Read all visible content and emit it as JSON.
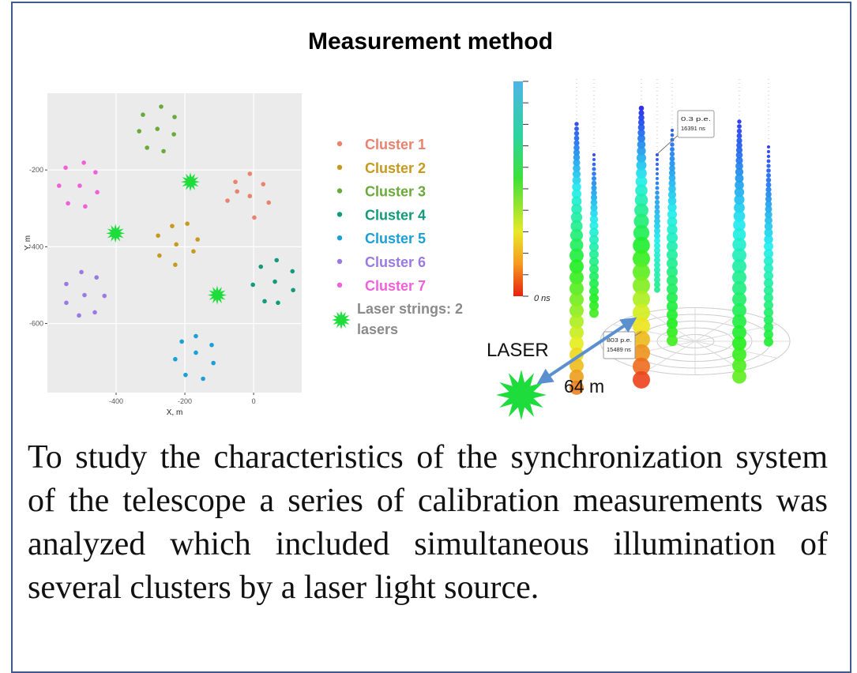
{
  "title": "Measurement method",
  "chart_data": {
    "type": "scatter",
    "xlabel": "X, m",
    "ylabel": "Y, m",
    "xlim": [
      -600,
      140
    ],
    "ylim": [
      -780,
      0
    ],
    "xticks": [
      -400,
      -200,
      0
    ],
    "yticks": [
      -200,
      -400,
      -600
    ],
    "grid": true,
    "series": [
      {
        "name": "Cluster 1",
        "color": "#e8836f",
        "marker": "circle",
        "x": [
          -11,
          -53,
          28,
          -48,
          -11,
          -76,
          44,
          2
        ],
        "values": [
          -210,
          -231,
          -237,
          -256,
          -268,
          -280,
          -285,
          -324
        ]
      },
      {
        "name": "Cluster 2",
        "color": "#c59a1e",
        "marker": "circle",
        "x": [
          -193,
          -237,
          -278,
          -163,
          -225,
          -175,
          -274,
          -228
        ],
        "values": [
          -340,
          -346,
          -371,
          -381,
          -394,
          -412,
          -423,
          -447
        ]
      },
      {
        "name": "Cluster 3",
        "color": "#6aaa3a",
        "marker": "circle",
        "x": [
          -269,
          -322,
          -230,
          -280,
          -333,
          -232,
          -310,
          -262
        ],
        "values": [
          -35,
          -56,
          -62,
          -93,
          -99,
          -107,
          -142,
          -151
        ]
      },
      {
        "name": "Cluster 4",
        "color": "#139a7a",
        "marker": "circle",
        "x": [
          67,
          21,
          113,
          62,
          -2,
          115,
          32,
          71
        ],
        "values": [
          -435,
          -452,
          -464,
          -491,
          -499,
          -513,
          -542,
          -546
        ]
      },
      {
        "name": "Cluster 5",
        "color": "#1a9fd6",
        "marker": "circle",
        "x": [
          -168,
          -209,
          -122,
          -168,
          -228,
          -117,
          -198,
          -147
        ],
        "values": [
          -633,
          -647,
          -656,
          -676,
          -693,
          -703,
          -734,
          -744
        ]
      },
      {
        "name": "Cluster 6",
        "color": "#9a7ae0",
        "marker": "circle",
        "x": [
          -501,
          -545,
          -457,
          -492,
          -545,
          -434,
          -508,
          -462
        ],
        "values": [
          -466,
          -497,
          -480,
          -526,
          -546,
          -528,
          -579,
          -571
        ]
      },
      {
        "name": "Cluster 7",
        "color": "#f060d8",
        "marker": "circle",
        "x": [
          -494,
          -547,
          -460,
          -506,
          -566,
          -455,
          -540,
          -490
        ],
        "values": [
          -181,
          -194,
          -206,
          -241,
          -241,
          -258,
          -287,
          -295
        ]
      },
      {
        "name": "Laser strings: 2 lasers",
        "color": "#1edc3c",
        "marker": "star",
        "x": [
          -184,
          -402,
          -106
        ],
        "values": [
          -231,
          -365,
          -526
        ]
      }
    ]
  },
  "event_display": {
    "color_bar_label": "0 ns",
    "annotations": [
      {
        "charge": "0.3 p.e.",
        "time": "16391 ns"
      },
      {
        "charge": "803 p.e.",
        "time": "15489 ns"
      }
    ],
    "laser_label": "LASER",
    "distance_label": "64 m"
  },
  "paragraph": "To study the characteristics of the synchronization system of the telescope a series of calibration measurements was analyzed which included simultaneous illumination of several clusters by a laser light source."
}
